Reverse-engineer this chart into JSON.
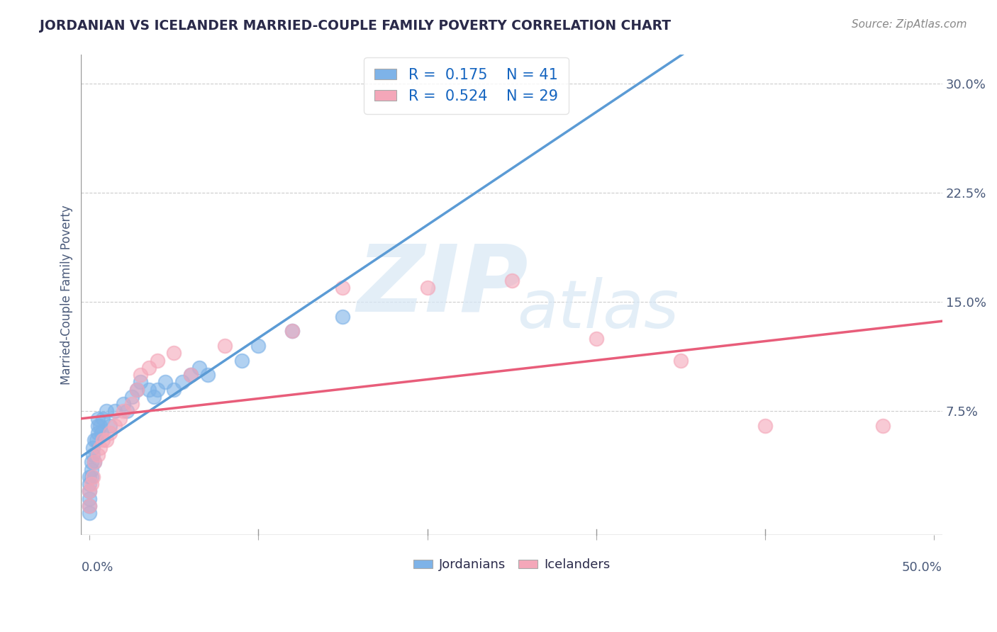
{
  "title": "JORDANIAN VS ICELANDER MARRIED-COUPLE FAMILY POVERTY CORRELATION CHART",
  "source_text": "Source: ZipAtlas.com",
  "ylabel": "Married-Couple Family Poverty",
  "xlim": [
    -0.005,
    0.505
  ],
  "ylim": [
    -0.01,
    0.32
  ],
  "xticks": [
    0.0,
    0.1,
    0.2,
    0.3,
    0.4,
    0.5
  ],
  "yticks": [
    0.075,
    0.15,
    0.225,
    0.3
  ],
  "x_edge_labels": [
    "0.0%",
    "50.0%"
  ],
  "yticklabels": [
    "7.5%",
    "15.0%",
    "22.5%",
    "30.0%"
  ],
  "jordanian_color": "#7eb3e8",
  "icelander_color": "#f4a7b9",
  "jordanian_line_color": "#5b9bd5",
  "icelander_line_color": "#e85d7a",
  "R_jordanian": 0.175,
  "N_jordanian": 41,
  "R_icelander": 0.524,
  "N_icelander": 29,
  "legend_R_color": "#1565c0",
  "watermark_ZIP": "ZIP",
  "watermark_atlas": "atlas",
  "jordanian_x": [
    0.0,
    0.0,
    0.0,
    0.0,
    0.0,
    0.0,
    0.001,
    0.001,
    0.001,
    0.002,
    0.002,
    0.003,
    0.003,
    0.004,
    0.005,
    0.005,
    0.005,
    0.006,
    0.007,
    0.008,
    0.01,
    0.012,
    0.015,
    0.02,
    0.022,
    0.025,
    0.028,
    0.03,
    0.035,
    0.038,
    0.04,
    0.045,
    0.05,
    0.055,
    0.06,
    0.065,
    0.07,
    0.09,
    0.1,
    0.12,
    0.15
  ],
  "jordanian_y": [
    0.005,
    0.01,
    0.015,
    0.02,
    0.025,
    0.03,
    0.03,
    0.035,
    0.04,
    0.045,
    0.05,
    0.04,
    0.055,
    0.055,
    0.06,
    0.065,
    0.07,
    0.065,
    0.06,
    0.07,
    0.075,
    0.065,
    0.075,
    0.08,
    0.075,
    0.085,
    0.09,
    0.095,
    0.09,
    0.085,
    0.09,
    0.095,
    0.09,
    0.095,
    0.1,
    0.105,
    0.1,
    0.11,
    0.12,
    0.13,
    0.14
  ],
  "icelander_x": [
    0.0,
    0.0,
    0.001,
    0.002,
    0.003,
    0.005,
    0.006,
    0.008,
    0.01,
    0.012,
    0.015,
    0.018,
    0.02,
    0.025,
    0.028,
    0.03,
    0.035,
    0.04,
    0.05,
    0.06,
    0.08,
    0.12,
    0.15,
    0.2,
    0.25,
    0.3,
    0.35,
    0.4,
    0.47
  ],
  "icelander_y": [
    0.01,
    0.02,
    0.025,
    0.03,
    0.04,
    0.045,
    0.05,
    0.055,
    0.055,
    0.06,
    0.065,
    0.07,
    0.075,
    0.08,
    0.09,
    0.1,
    0.105,
    0.11,
    0.115,
    0.1,
    0.12,
    0.13,
    0.16,
    0.16,
    0.165,
    0.125,
    0.11,
    0.065,
    0.065
  ]
}
